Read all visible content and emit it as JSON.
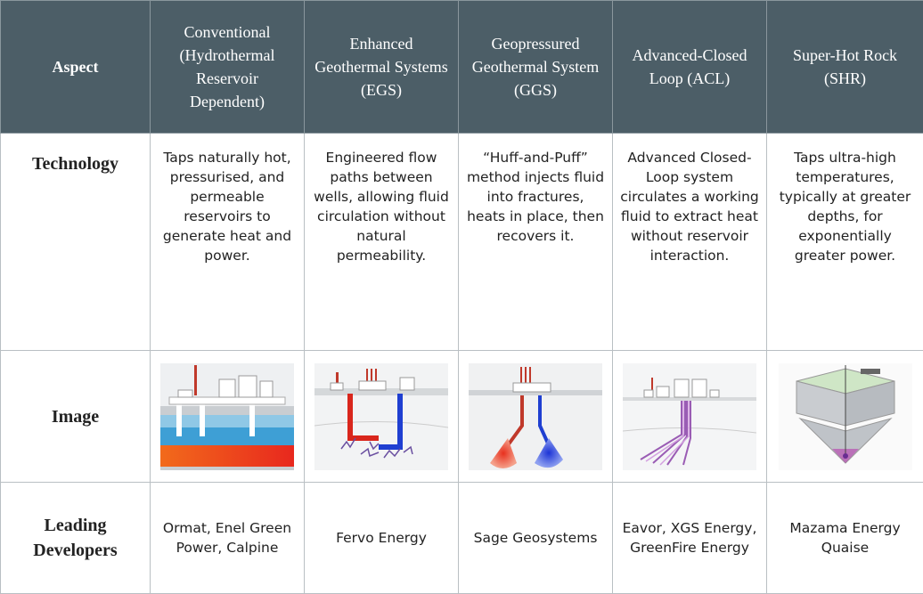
{
  "table": {
    "columns": [
      "Aspect",
      "Conventional (Hydrothermal Reservoir Dependent)",
      "Enhanced Geothermal Systems (EGS)",
      "Geopressured Geothermal System (GGS)",
      "Advanced-Closed Loop (ACL)",
      "Super-Hot Rock (SHR)"
    ],
    "rows": [
      {
        "label": "Technology",
        "cells": [
          "Taps naturally hot, pressurised, and permeable reservoirs to generate heat and power.",
          "Engineered flow paths between wells, allowing fluid circulation without natural permeability.",
          "“Huff-and-Puff” method injects fluid into fractures, heats in place, then recovers it.",
          "Advanced Closed-Loop system circulates a working fluid to extract heat without reservoir interaction.",
          "Taps ultra-high temperatures, typically at greater depths, for exponentially greater power."
        ]
      },
      {
        "label": "Image"
      },
      {
        "label": "Leading Developers",
        "cells": [
          "Ormat, Enel Green Power, Calpine",
          "Fervo Energy",
          "Sage Geosystems",
          "Eavor, XGS Energy, GreenFire Energy",
          "Mazama Energy Quaise"
        ]
      }
    ]
  }
}
